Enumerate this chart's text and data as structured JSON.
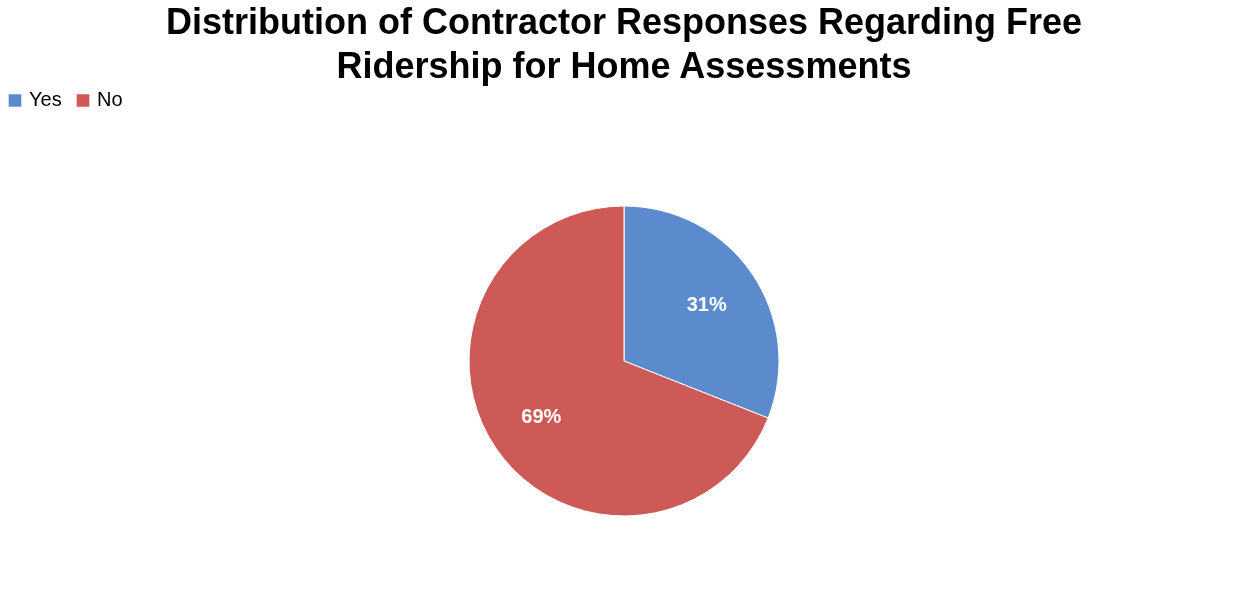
{
  "chart_data": {
    "type": "pie",
    "title": "Distribution of Contractor Responses Regarding Free Ridership for Home Assessments",
    "categories": [
      "Yes",
      "No"
    ],
    "values": [
      31,
      69
    ],
    "colors": [
      "#5b8bcd",
      "#cd5a57"
    ],
    "value_labels": [
      "31%",
      "69%"
    ],
    "legend": "top"
  }
}
